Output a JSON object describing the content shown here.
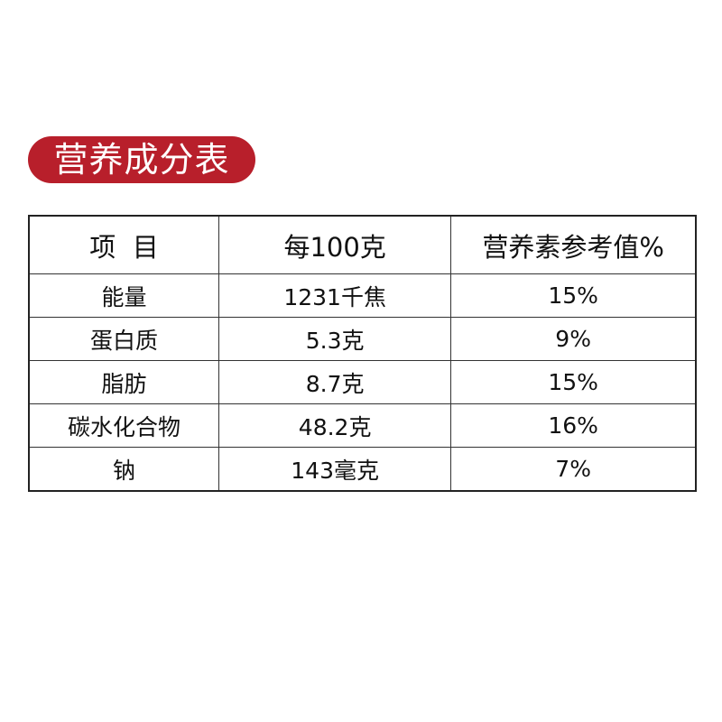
{
  "title": "营养成分表",
  "accent_color": "#b81f2b",
  "table": {
    "headers": [
      "项  目",
      "每100克",
      "营养素参考值%"
    ],
    "rows": [
      [
        "能量",
        "1231千焦",
        "15%"
      ],
      [
        "蛋白质",
        "5.3克",
        "9%"
      ],
      [
        "脂肪",
        "8.7克",
        "15%"
      ],
      [
        "碳水化合物",
        "48.2克",
        "16%"
      ],
      [
        "钠",
        "143毫克",
        "7%"
      ]
    ]
  }
}
